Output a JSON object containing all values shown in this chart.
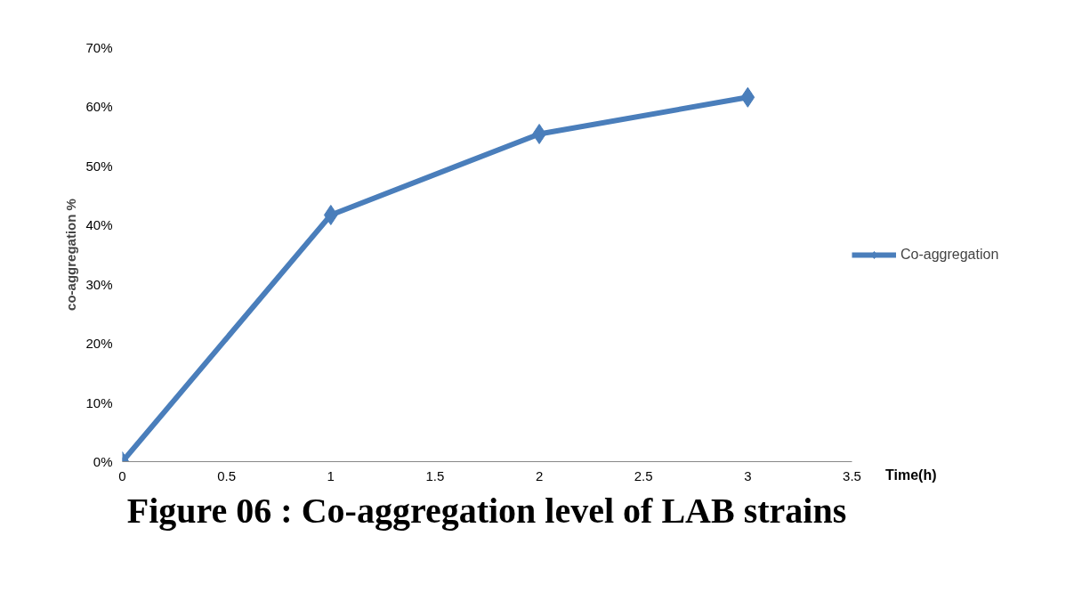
{
  "chart_data": {
    "type": "line",
    "title": "Figure 06 : Co-aggregation level of LAB strains",
    "xlabel": "Time(h)",
    "ylabel": "co-aggregation %",
    "x": [
      0,
      1,
      2,
      3
    ],
    "series": [
      {
        "name": "Co-aggregation",
        "color": "#4a7ebb",
        "values": [
          0,
          41.7,
          55.4,
          61.6
        ]
      }
    ],
    "xlim": [
      0,
      3.5
    ],
    "xticks": [
      0,
      0.5,
      1,
      1.5,
      2,
      2.5,
      3,
      3.5
    ],
    "ylim": [
      0,
      70
    ],
    "yticks": [
      {
        "value": 0,
        "label": "0%"
      },
      {
        "value": 10,
        "label": "10%"
      },
      {
        "value": 20,
        "label": "20%"
      },
      {
        "value": 30,
        "label": "30%"
      },
      {
        "value": 40,
        "label": "40%"
      },
      {
        "value": 50,
        "label": "50%"
      },
      {
        "value": 60,
        "label": "60%"
      },
      {
        "value": 70,
        "label": "70%"
      }
    ],
    "grid": false,
    "legend": "right",
    "marker": "diamond",
    "line_style": "solid"
  }
}
